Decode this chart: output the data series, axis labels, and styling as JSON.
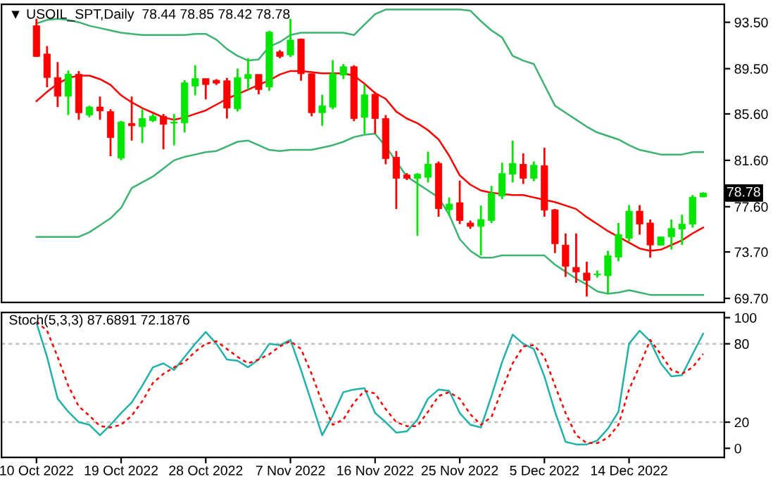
{
  "chart_data": [
    {
      "type": "candlestick",
      "title": "▼ USOIL_SPT,Daily  78.44 78.85 78.42 78.78",
      "categories": [
        null,
        null,
        null,
        null,
        null,
        null,
        null,
        null,
        null,
        null,
        null,
        null,
        null,
        null,
        null,
        null,
        null,
        null,
        null,
        null,
        null,
        null,
        null,
        null,
        null,
        null,
        null,
        null,
        null,
        null,
        null,
        null,
        null,
        null,
        null,
        null,
        null,
        null,
        null,
        null,
        null,
        null,
        null,
        null,
        null,
        null,
        null,
        null,
        null,
        null,
        null,
        null,
        null,
        null,
        null,
        null,
        null,
        null,
        null,
        null,
        null,
        null,
        null,
        null
      ],
      "ohlc": [
        [
          93.2,
          93.8,
          90.5,
          90.55
        ],
        [
          90.76,
          91.44,
          87.9,
          88.74
        ],
        [
          88.74,
          90.07,
          86.19,
          87.12
        ],
        [
          87.12,
          89.34,
          85.5,
          89.02
        ],
        [
          89.02,
          89.3,
          85.1,
          85.7
        ],
        [
          85.5,
          86.3,
          85.3,
          86.2
        ],
        [
          86.2,
          87.1,
          85.1,
          85.86
        ],
        [
          85.8,
          86.0,
          81.95,
          83.56
        ],
        [
          81.79,
          85.0,
          81.6,
          84.9
        ],
        [
          84.77,
          87.1,
          83.3,
          84.58
        ],
        [
          84.5,
          86.0,
          83.1,
          85.2
        ],
        [
          85.02,
          85.6,
          84.9,
          85.4
        ],
        [
          85.4,
          85.6,
          82.55,
          84.7
        ],
        [
          84.8,
          85.6,
          82.9,
          84.9
        ],
        [
          84.82,
          88.5,
          84.0,
          88.29
        ],
        [
          88.0,
          89.8,
          87.2,
          88.65
        ],
        [
          88.65,
          88.65,
          86.85,
          88.13
        ],
        [
          88.5,
          88.6,
          88.1,
          88.25
        ],
        [
          88.46,
          88.7,
          85.2,
          86.1
        ],
        [
          86.03,
          89.5,
          85.8,
          88.74
        ],
        [
          88.65,
          90.4,
          87.7,
          89.0
        ],
        [
          89.0,
          89.0,
          87.3,
          87.7
        ],
        [
          87.92,
          92.77,
          87.6,
          92.65
        ],
        [
          90.95,
          91.1,
          90.4,
          90.55
        ],
        [
          90.68,
          93.8,
          90.5,
          91.97
        ],
        [
          92.05,
          92.1,
          88.46,
          89.06
        ],
        [
          89.06,
          89.1,
          85.4,
          85.7
        ],
        [
          85.7,
          87.25,
          84.58,
          86.3
        ],
        [
          86.19,
          90.23,
          86.0,
          89.06
        ],
        [
          88.94,
          89.9,
          88.6,
          89.67
        ],
        [
          89.67,
          89.8,
          84.98,
          85.2
        ],
        [
          85.3,
          88.13,
          83.9,
          87.25
        ],
        [
          87.3,
          87.5,
          83.9,
          85.2
        ],
        [
          85.2,
          85.5,
          81.26,
          81.74
        ],
        [
          81.86,
          82.4,
          77.4,
          80.05
        ],
        [
          80.34,
          80.5,
          79.9,
          80.05
        ],
        [
          80.05,
          80.5,
          75.1,
          80.4
        ],
        [
          80.13,
          82.35,
          79.7,
          81.26
        ],
        [
          81.34,
          81.5,
          76.74,
          77.43
        ],
        [
          77.34,
          78.4,
          76.8,
          77.83
        ],
        [
          77.95,
          79.85,
          76.1,
          76.41
        ],
        [
          76.2,
          76.4,
          75.7,
          75.9
        ],
        [
          75.9,
          77.7,
          73.4,
          76.5
        ],
        [
          76.41,
          79.4,
          76.2,
          78.76
        ],
        [
          78.52,
          81.4,
          78.25,
          80.46
        ],
        [
          80.4,
          83.3,
          79.7,
          81.34
        ],
        [
          81.26,
          82.2,
          79.56,
          80.05
        ],
        [
          80.05,
          81.5,
          79.8,
          81.18
        ],
        [
          81.14,
          82.68,
          76.74,
          77.3
        ],
        [
          77.34,
          77.4,
          73.6,
          74.4
        ],
        [
          74.3,
          75.3,
          71.56,
          72.46
        ],
        [
          72.37,
          75.3,
          71.04,
          71.97
        ],
        [
          71.89,
          72.86,
          69.86,
          71.25
        ],
        [
          71.72,
          72.1,
          71.5,
          71.8
        ],
        [
          71.65,
          73.8,
          70.15,
          73.38
        ],
        [
          73.26,
          76.2,
          72.9,
          75.2
        ],
        [
          74.88,
          77.74,
          74.6,
          77.22
        ],
        [
          77.22,
          77.74,
          75.2,
          76.1
        ],
        [
          76.2,
          76.5,
          73.2,
          74.3
        ],
        [
          74.28,
          75.0,
          74.28,
          75.0
        ],
        [
          75.0,
          76.5,
          73.9,
          75.73
        ],
        [
          75.68,
          76.9,
          74.3,
          76.1
        ],
        [
          76.1,
          78.6,
          75.8,
          78.43
        ],
        [
          78.44,
          78.85,
          78.42,
          78.78
        ]
      ],
      "colors": [
        "#ff0000",
        "#ff0000",
        "#ff0000",
        "#00e600",
        "#ff0000",
        "#00e600",
        "#ff0000",
        "#ff0000",
        "#00e600",
        "#ff0000",
        "#00e600",
        "#00e600",
        "#ff0000",
        "#00e600",
        "#00e600",
        "#00e600",
        "#ff0000",
        "#ff0000",
        "#ff0000",
        "#00e600",
        "#00e600",
        "#ff0000",
        "#00e600",
        "#ff0000",
        "#00e600",
        "#ff0000",
        "#ff0000",
        "#00e600",
        "#00e600",
        "#00e600",
        "#ff0000",
        "#00e600",
        "#ff0000",
        "#ff0000",
        "#ff0000",
        "#ff0000",
        "#00e600",
        "#00e600",
        "#ff0000",
        "#00e600",
        "#ff0000",
        "#ff0000",
        "#00e600",
        "#00e600",
        "#00e600",
        "#00e600",
        "#ff0000",
        "#00e600",
        "#ff0000",
        "#ff0000",
        "#ff0000",
        "#ff0000",
        "#ff0000",
        "#00e600",
        "#00e600",
        "#00e600",
        "#00e600",
        "#ff0000",
        "#ff0000",
        "#00e600",
        "#00e600",
        "#00e600",
        "#00e600",
        "#00e600"
      ],
      "series": [
        {
          "type": "line",
          "color": "#3cb371",
          "values": [
            93.4,
            93.7,
            93.8,
            93.7,
            93.5,
            93.2,
            93.0,
            92.8,
            92.6,
            92.5,
            92.4,
            92.4,
            92.4,
            92.4,
            92.4,
            92.5,
            92.5,
            92.0,
            91.2,
            90.6,
            90.2,
            90.3,
            91.4,
            91.8,
            92.4,
            92.6,
            92.6,
            92.6,
            92.6,
            92.6,
            92.4,
            93.3,
            94.2,
            94.6,
            94.6,
            94.6,
            94.6,
            94.6,
            94.6,
            94.6,
            94.6,
            94.5,
            93.6,
            92.8,
            92.2,
            90.6,
            90.2,
            89.9,
            88.1,
            86.3,
            85.7,
            85.1,
            84.5,
            84.0,
            83.7,
            83.4,
            82.9,
            82.5,
            82.3,
            82.1,
            82.1,
            82.1,
            82.3,
            82.3
          ]
        },
        {
          "type": "line",
          "color": "#ff0000",
          "values": [
            86.7,
            87.5,
            88.2,
            88.7,
            88.9,
            88.9,
            88.6,
            88.1,
            87.2,
            86.6,
            86.1,
            85.7,
            85.3,
            85.1,
            85.3,
            85.6,
            85.9,
            86.4,
            86.9,
            87.3,
            87.7,
            88.1,
            88.5,
            89.0,
            89.3,
            89.3,
            89.2,
            89.1,
            89.1,
            89.1,
            88.9,
            88.2,
            87.4,
            86.9,
            85.8,
            85.2,
            84.8,
            84.2,
            83.4,
            82.0,
            80.3,
            79.5,
            79.0,
            78.8,
            78.7,
            78.6,
            78.6,
            78.4,
            78.2,
            78.0,
            77.7,
            77.4,
            76.7,
            76.1,
            75.5,
            75.0,
            74.5,
            74.0,
            73.8,
            73.9,
            74.3,
            74.7,
            75.3,
            75.8
          ]
        },
        {
          "type": "line",
          "color": "#3cb371",
          "values": [
            75.0,
            75.0,
            75.0,
            75.0,
            75.0,
            75.4,
            76.0,
            76.6,
            77.5,
            79.2,
            79.7,
            80.2,
            80.9,
            81.6,
            81.9,
            82.1,
            82.3,
            82.4,
            82.8,
            83.2,
            83.3,
            82.9,
            82.5,
            82.4,
            82.5,
            82.5,
            82.5,
            82.7,
            82.9,
            83.2,
            83.6,
            83.8,
            83.9,
            82.8,
            81.5,
            80.2,
            79.6,
            79.0,
            78.4,
            76.9,
            74.8,
            73.8,
            73.2,
            73.2,
            73.4,
            73.4,
            73.4,
            73.4,
            73.4,
            72.6,
            72.0,
            71.4,
            70.9,
            70.3,
            70.1,
            70.2,
            70.4,
            70.2,
            70.0,
            70.0,
            70.0,
            70.0,
            70.0,
            70.0
          ]
        }
      ],
      "ylim": [
        69.35,
        95.05
      ],
      "yticks": [
        {
          "value": 93.5,
          "label": "93.50"
        },
        {
          "value": 89.5,
          "label": "89.50"
        },
        {
          "value": 85.6,
          "label": "85.60"
        },
        {
          "value": 81.6,
          "label": "81.60"
        },
        {
          "value": 77.6,
          "label": "77.60"
        },
        {
          "value": 73.7,
          "label": "73.70"
        },
        {
          "value": 69.7,
          "label": "69.70"
        }
      ],
      "annotations": [
        "78.78"
      ],
      "tick_labels": "y"
    },
    {
      "type": "line",
      "title": "Stoch(5,3,3) 87.6891 72.1876",
      "categories": [
        "10 Oct 2022",
        null,
        null,
        null,
        null,
        null,
        null,
        null,
        "19 Oct 2022",
        null,
        null,
        null,
        null,
        null,
        null,
        null,
        "28 Oct 2022",
        null,
        null,
        null,
        null,
        null,
        null,
        null,
        "7 Nov 2022",
        null,
        null,
        null,
        null,
        null,
        null,
        null,
        "16 Nov 2022",
        null,
        null,
        null,
        null,
        null,
        null,
        null,
        "25 Nov 2022",
        null,
        null,
        null,
        null,
        null,
        null,
        null,
        "5 Dec 2022",
        null,
        null,
        null,
        null,
        null,
        null,
        null,
        "14 Dec 2022",
        null,
        null,
        null,
        null,
        null,
        null,
        null
      ],
      "series": [
        {
          "color": "#20b2aa",
          "line_style": "solid",
          "values": [
            96,
            70,
            38,
            28,
            20,
            18,
            10,
            18,
            27,
            35,
            48,
            62,
            65,
            60,
            70,
            80,
            89,
            80,
            68,
            67,
            62,
            68,
            80,
            79,
            83,
            60,
            35,
            10,
            25,
            43,
            45,
            46,
            27,
            20,
            12,
            13,
            22,
            38,
            45,
            44,
            27,
            18,
            16,
            40,
            66,
            87,
            80,
            76,
            55,
            28,
            5,
            3,
            3,
            6,
            15,
            28,
            80,
            90,
            82,
            65,
            55,
            56,
            72,
            87.7
          ]
        },
        {
          "color": "#ff0000",
          "line_style": "dashed",
          "values": [
            97,
            90,
            70,
            48,
            32,
            25,
            17,
            16,
            18,
            25,
            36,
            50,
            57,
            62,
            66,
            74,
            80,
            82,
            76,
            70,
            65,
            68,
            72,
            78,
            82,
            76,
            57,
            35,
            18,
            22,
            35,
            44,
            42,
            30,
            20,
            17,
            17,
            28,
            40,
            43,
            38,
            26,
            18,
            24,
            45,
            65,
            78,
            79,
            70,
            48,
            27,
            10,
            4,
            4,
            8,
            18,
            45,
            63,
            83,
            72,
            60,
            57,
            62,
            72.2
          ]
        }
      ],
      "ylim": [
        -7,
        104
      ],
      "yticks": [
        100,
        80,
        20,
        0
      ],
      "ref_lines": [
        {
          "axis": "y",
          "value": 80,
          "color": "#c0c0c0",
          "line_style": "dashed"
        },
        {
          "axis": "y",
          "value": 20,
          "color": "#c0c0c0",
          "line_style": "dashed"
        }
      ]
    }
  ]
}
